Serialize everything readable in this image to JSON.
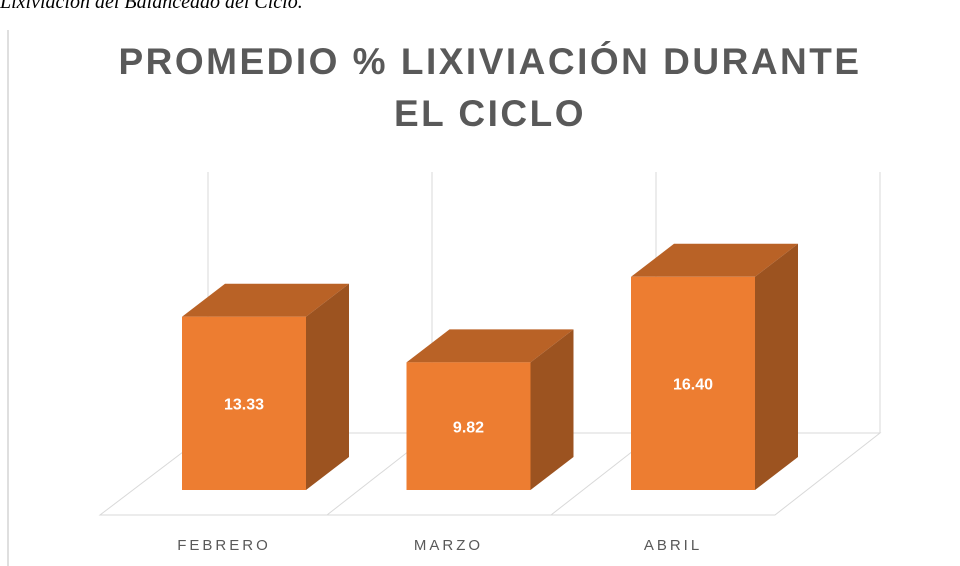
{
  "caption": "Lixiviación del Balanceado del Ciclo.",
  "chart_data": {
    "type": "bar3d",
    "title": "PROMEDIO % LIXIVIACIÓN DURANTE EL CICLO",
    "categories": [
      "FEBRERO",
      "MARZO",
      "ABRIL"
    ],
    "values": [
      13.33,
      9.82,
      16.4
    ],
    "value_labels": [
      "13.33",
      "9.82",
      "16.40"
    ],
    "color": "#ed7d31"
  }
}
